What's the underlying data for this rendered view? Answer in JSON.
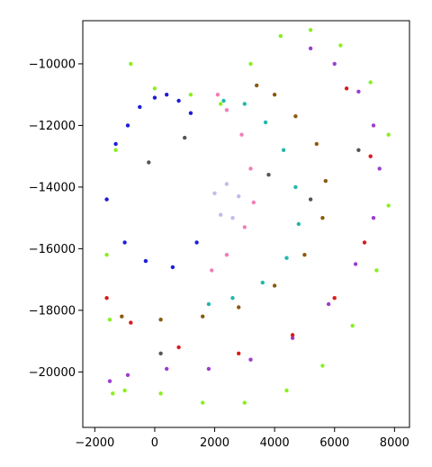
{
  "chart_data": {
    "type": "scatter",
    "title": "",
    "xlabel": "",
    "ylabel": "",
    "xlim": [
      -2400,
      8500
    ],
    "ylim": [
      -21800,
      -8600
    ],
    "grid": false,
    "legend": "none",
    "x_ticks": [
      {
        "value": -2000,
        "label": "−2000"
      },
      {
        "value": 0,
        "label": "0"
      },
      {
        "value": 2000,
        "label": "2000"
      },
      {
        "value": 4000,
        "label": "4000"
      },
      {
        "value": 6000,
        "label": "6000"
      },
      {
        "value": 8000,
        "label": "8000"
      }
    ],
    "y_ticks": [
      {
        "value": -10000,
        "label": "−10000"
      },
      {
        "value": -12000,
        "label": "−12000"
      },
      {
        "value": -14000,
        "label": "−14000"
      },
      {
        "value": -16000,
        "label": "−16000"
      },
      {
        "value": -18000,
        "label": "−18000"
      },
      {
        "value": -20000,
        "label": "−20000"
      }
    ],
    "series": [
      {
        "color": "#1d1dd6",
        "region": "thalamus-blue",
        "x": [
          -1300,
          -900,
          -500,
          0,
          400,
          800,
          1200,
          -1600,
          -1000,
          -300,
          600,
          1400
        ],
        "y": [
          -12600,
          -12000,
          -11400,
          -11100,
          -11000,
          -11200,
          -11600,
          -14400,
          -15800,
          -16400,
          -16600,
          -15800
        ]
      },
      {
        "color": "#c9b8ea",
        "region": "central-lavender",
        "x": [
          2000,
          2400,
          2800,
          2200,
          2600
        ],
        "y": [
          -14200,
          -13900,
          -14300,
          -14900,
          -15000
        ]
      },
      {
        "color": "#f07fb8",
        "region": "pink-band",
        "x": [
          2100,
          2400,
          2900,
          3200,
          3300,
          3000,
          2400,
          1900
        ],
        "y": [
          -11000,
          -11500,
          -12300,
          -13400,
          -14500,
          -15300,
          -16200,
          -16700
        ]
      },
      {
        "color": "#22b7ae",
        "region": "teal-band",
        "x": [
          2300,
          3000,
          3700,
          4300,
          4700,
          4800,
          4400,
          3600,
          2600,
          1800
        ],
        "y": [
          -11200,
          -11300,
          -11900,
          -12800,
          -14000,
          -15200,
          -16300,
          -17100,
          -17600,
          -17800
        ]
      },
      {
        "color": "#8a5a10",
        "region": "brown-band",
        "x": [
          3400,
          4000,
          4700,
          5400,
          5700,
          5600,
          5000,
          4000,
          2800,
          1600,
          200,
          -1100
        ],
        "y": [
          -10700,
          -11000,
          -11700,
          -12600,
          -13800,
          -15000,
          -16200,
          -17200,
          -17900,
          -18200,
          -18300,
          -18200
        ]
      },
      {
        "color": "#9b3ecf",
        "region": "purple-outer",
        "x": [
          5200,
          6000,
          6800,
          7300,
          7500,
          7300,
          6700,
          5800,
          4600,
          3200,
          1800,
          400,
          -900,
          -1500
        ],
        "y": [
          -9500,
          -10000,
          -10900,
          -12000,
          -13400,
          -15000,
          -16500,
          -17800,
          -18900,
          -19600,
          -19900,
          -19900,
          -20100,
          -20300
        ]
      },
      {
        "color": "#88f01e",
        "region": "lime-border",
        "x": [
          -800,
          0,
          1200,
          2200,
          3200,
          4200,
          5200,
          6200,
          7200,
          7800,
          7800,
          7400,
          6600,
          5600,
          4400,
          3000,
          1600,
          200,
          -1000,
          -1400,
          -1500,
          -1600,
          -1300
        ],
        "y": [
          -10000,
          -10800,
          -11000,
          -11300,
          -10000,
          -9100,
          -8900,
          -9400,
          -10600,
          -12300,
          -14600,
          -16700,
          -18500,
          -19800,
          -20600,
          -21000,
          -21000,
          -20700,
          -20600,
          -20700,
          -18300,
          -16200,
          -12800
        ]
      },
      {
        "color": "#d81b1b",
        "region": "red-scatter",
        "x": [
          -1600,
          -800,
          800,
          2800,
          4600,
          6000,
          7000,
          7200,
          6400
        ],
        "y": [
          -17600,
          -18400,
          -19200,
          -19400,
          -18800,
          -17600,
          -15800,
          -13000,
          -10800
        ]
      },
      {
        "color": "#555555",
        "region": "dark-scatter",
        "x": [
          -200,
          1000,
          3800,
          5200,
          6800,
          200
        ],
        "y": [
          -13200,
          -12400,
          -13600,
          -14400,
          -12800,
          -19400
        ]
      }
    ]
  }
}
